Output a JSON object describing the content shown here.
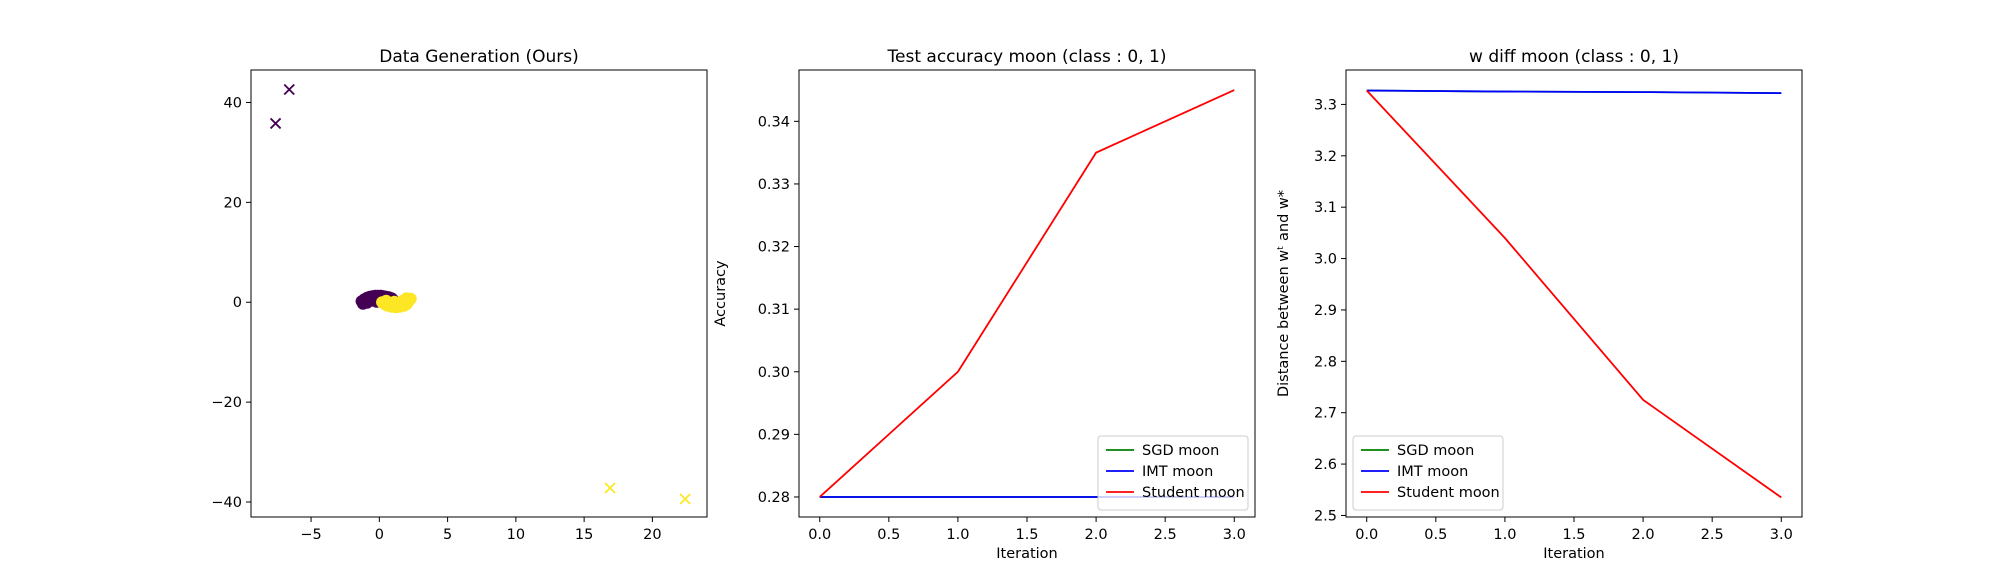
{
  "chart_data": [
    {
      "type": "scatter",
      "title": "Data Generation (Ours)",
      "xlabel": "",
      "ylabel": "",
      "xlim": [
        -9.4,
        24.0
      ],
      "ylim": [
        -43.0,
        46.5
      ],
      "xticks": [
        -5,
        0,
        5,
        10,
        15,
        20
      ],
      "yticks": [
        -40,
        -20,
        0,
        20,
        40
      ],
      "grid": false,
      "series": [
        {
          "class": 0,
          "marker": "x",
          "color": "#440154",
          "points": [
            [
              -7.6,
              35.8
            ],
            [
              -6.6,
              42.6
            ]
          ]
        },
        {
          "class": 1,
          "marker": "x",
          "color": "#fde725",
          "points": [
            [
              16.9,
              -37.2
            ],
            [
              22.4,
              -39.4
            ]
          ]
        },
        {
          "class": 0,
          "marker": "o",
          "color": "#440154",
          "points": [
            [
              -1.3,
              0.2
            ],
            [
              -1.1,
              0.6
            ],
            [
              -0.9,
              0.9
            ],
            [
              -0.7,
              1.1
            ],
            [
              -0.5,
              1.2
            ],
            [
              -0.3,
              1.3
            ],
            [
              -0.1,
              1.3
            ],
            [
              0.1,
              1.3
            ],
            [
              0.3,
              1.2
            ],
            [
              0.5,
              1.1
            ],
            [
              0.7,
              1.0
            ],
            [
              0.9,
              0.8
            ],
            [
              1.0,
              0.5
            ],
            [
              -1.2,
              -0.3
            ],
            [
              -0.9,
              -0.1
            ],
            [
              -0.6,
              0.3
            ],
            [
              -0.3,
              0.6
            ],
            [
              0.0,
              0.7
            ],
            [
              0.3,
              0.7
            ],
            [
              0.6,
              0.5
            ],
            [
              0.2,
              0.2
            ],
            [
              -0.2,
              0.1
            ],
            [
              0.8,
              0.2
            ],
            [
              -1.0,
              0.4
            ],
            [
              0.4,
              0.9
            ]
          ]
        },
        {
          "class": 1,
          "marker": "o",
          "color": "#fde725",
          "points": [
            [
              0.2,
              0.0
            ],
            [
              0.4,
              -0.4
            ],
            [
              0.6,
              -0.7
            ],
            [
              0.9,
              -0.9
            ],
            [
              1.2,
              -1.0
            ],
            [
              1.5,
              -0.9
            ],
            [
              1.8,
              -0.7
            ],
            [
              2.0,
              -0.4
            ],
            [
              2.1,
              0.0
            ],
            [
              2.2,
              0.4
            ],
            [
              1.0,
              -0.3
            ],
            [
              1.3,
              -0.5
            ],
            [
              1.6,
              -0.3
            ],
            [
              1.9,
              0.1
            ],
            [
              0.7,
              -0.2
            ],
            [
              2.3,
              0.7
            ],
            [
              2.0,
              0.8
            ],
            [
              1.7,
              0.3
            ],
            [
              0.5,
              0.3
            ],
            [
              1.1,
              0.1
            ]
          ]
        }
      ]
    },
    {
      "type": "line",
      "title": "Test accuracy moon (class : 0, 1)",
      "xlabel": "Iteration",
      "ylabel": "Accuracy",
      "xlim": [
        -0.15,
        3.15
      ],
      "ylim": [
        0.2768,
        0.3482
      ],
      "xticks": [
        "0.0",
        "0.5",
        "1.0",
        "1.5",
        "2.0",
        "2.5",
        "3.0"
      ],
      "yticks": [
        "0.28",
        "0.29",
        "0.30",
        "0.31",
        "0.32",
        "0.33",
        "0.34"
      ],
      "grid": false,
      "legend_position": "lower-right",
      "x": [
        0,
        1,
        2,
        3
      ],
      "series": [
        {
          "name": "SGD moon",
          "color": "#008000",
          "values": [
            0.28,
            0.28,
            0.28,
            0.28
          ]
        },
        {
          "name": "IMT moon",
          "color": "#0000ff",
          "values": [
            0.28,
            0.28,
            0.28,
            0.28
          ]
        },
        {
          "name": "Student moon",
          "color": "#ff0000",
          "values": [
            0.28,
            0.3,
            0.335,
            0.345
          ]
        }
      ]
    },
    {
      "type": "line",
      "title": "w diff moon (class : 0, 1)",
      "xlabel": "Iteration",
      "ylabel": "Distance between wᵗ and w*",
      "xlim": [
        -0.15,
        3.15
      ],
      "ylim": [
        2.497,
        3.367
      ],
      "xticks": [
        "0.0",
        "0.5",
        "1.0",
        "1.5",
        "2.0",
        "2.5",
        "3.0"
      ],
      "yticks": [
        "2.5",
        "2.6",
        "2.7",
        "2.8",
        "2.9",
        "3.0",
        "3.1",
        "3.2",
        "3.3"
      ],
      "grid": false,
      "legend_position": "lower-left",
      "x": [
        0,
        1,
        2,
        3
      ],
      "series": [
        {
          "name": "SGD moon",
          "color": "#008000",
          "values": [
            3.327,
            3.325,
            3.324,
            3.322
          ]
        },
        {
          "name": "IMT moon",
          "color": "#0000ff",
          "values": [
            3.327,
            3.325,
            3.324,
            3.322
          ]
        },
        {
          "name": "Student moon",
          "color": "#ff0000",
          "values": [
            3.327,
            3.04,
            2.725,
            2.535
          ]
        }
      ]
    }
  ]
}
